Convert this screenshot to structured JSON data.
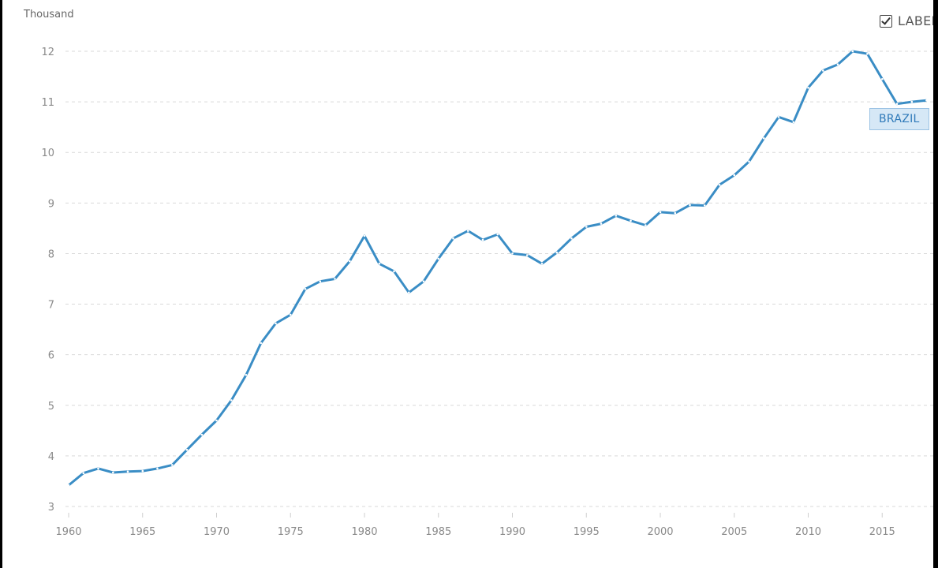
{
  "controls": {
    "label_toggle_text": "LABEL",
    "label_checked": true
  },
  "colors": {
    "series": "#3a8dc5",
    "grid": "#d9d9d9",
    "tick_text": "#8a8a8a"
  },
  "chart_data": {
    "type": "line",
    "title": "",
    "xlabel": "",
    "ylabel": "",
    "unit_label": "Thousand",
    "xlim": [
      1960,
      2018
    ],
    "ylim": [
      3,
      12
    ],
    "x_ticks": [
      1960,
      1965,
      1970,
      1975,
      1980,
      1985,
      1990,
      1995,
      2000,
      2005,
      2010,
      2015
    ],
    "y_ticks": [
      3,
      4,
      5,
      6,
      7,
      8,
      9,
      10,
      11,
      12
    ],
    "grid": true,
    "series_tag": "BRAZIL",
    "series": [
      {
        "name": "BRAZIL",
        "x": [
          1960,
          1961,
          1962,
          1963,
          1964,
          1965,
          1966,
          1967,
          1968,
          1969,
          1970,
          1971,
          1972,
          1973,
          1974,
          1975,
          1976,
          1977,
          1978,
          1979,
          1980,
          1981,
          1982,
          1983,
          1984,
          1985,
          1986,
          1987,
          1988,
          1989,
          1990,
          1991,
          1992,
          1993,
          1994,
          1995,
          1996,
          1997,
          1998,
          1999,
          2000,
          2001,
          2002,
          2003,
          2004,
          2005,
          2006,
          2007,
          2008,
          2009,
          2010,
          2011,
          2012,
          2013,
          2014,
          2015,
          2016,
          2017,
          2018
        ],
        "values": [
          3.42,
          3.66,
          3.75,
          3.67,
          3.69,
          3.7,
          3.75,
          3.82,
          4.12,
          4.42,
          4.7,
          5.1,
          5.6,
          6.23,
          6.62,
          6.79,
          7.3,
          7.45,
          7.5,
          7.85,
          8.35,
          7.8,
          7.65,
          7.23,
          7.45,
          7.9,
          8.3,
          8.45,
          8.27,
          8.38,
          8.0,
          7.97,
          7.8,
          8.02,
          8.3,
          8.53,
          8.59,
          8.75,
          8.65,
          8.56,
          8.82,
          8.8,
          8.96,
          8.95,
          9.36,
          9.55,
          9.82,
          10.28,
          10.7,
          10.6,
          11.28,
          11.62,
          11.74,
          12.0,
          11.95,
          11.45,
          10.96,
          11.0,
          11.03
        ]
      }
    ]
  }
}
